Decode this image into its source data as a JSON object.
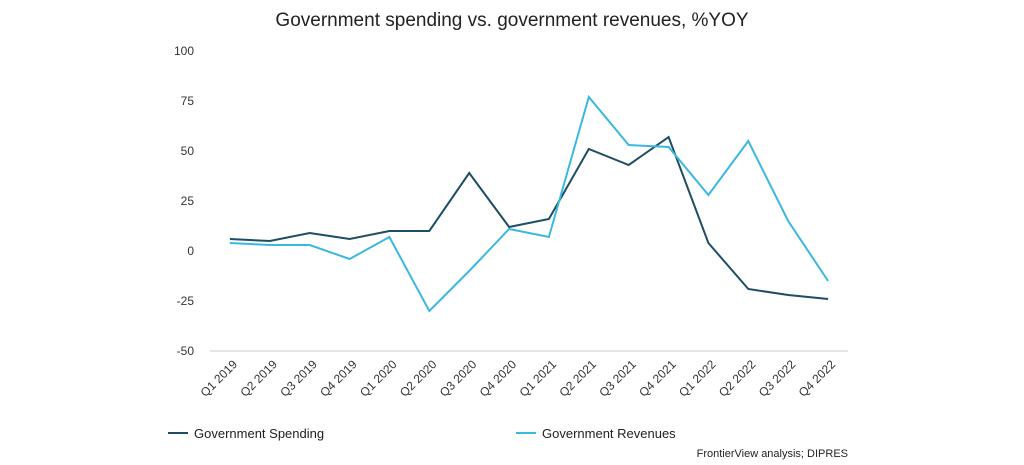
{
  "chart_data": {
    "type": "line",
    "title": "Government spending vs. government revenues, %YOY",
    "xlabel": "",
    "ylabel": "",
    "categories": [
      "Q1 2019",
      "Q2 2019",
      "Q3 2019",
      "Q4 2019",
      "Q1 2020",
      "Q2 2020",
      "Q3 2020",
      "Q4 2020",
      "Q1 2021",
      "Q2 2021",
      "Q3 2021",
      "Q4 2021",
      "Q1 2022",
      "Q2 2022",
      "Q3 2022",
      "Q4 2022"
    ],
    "yticks": [
      "100",
      "75",
      "50",
      "25",
      "0",
      "-25",
      "-50"
    ],
    "ylim": [
      -50,
      100
    ],
    "grid": false,
    "legend_position": "bottom",
    "series": [
      {
        "name": "Government Spending",
        "color": "#1d4e63",
        "values": [
          6,
          5,
          9,
          6,
          10,
          10,
          39,
          12,
          16,
          51,
          43,
          57,
          4,
          -19,
          -22,
          -24
        ]
      },
      {
        "name": "Government Revenues",
        "color": "#3bb8e0",
        "values": [
          4,
          3,
          3,
          -4,
          7,
          -30,
          -10,
          11,
          7,
          77,
          53,
          52,
          28,
          55,
          15,
          -15
        ]
      }
    ],
    "source": "FrontierView analysis; DIPRES"
  }
}
